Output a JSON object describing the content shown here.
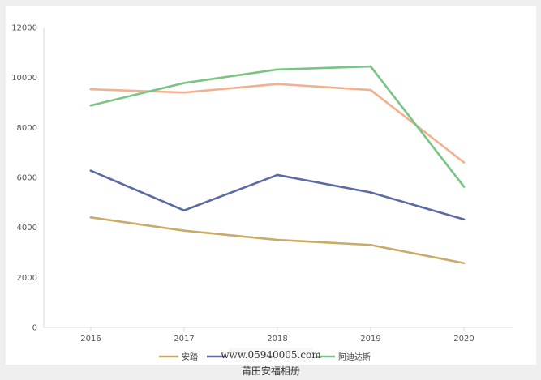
{
  "chart_data": {
    "type": "line",
    "title": "",
    "xlabel": "",
    "ylabel": "",
    "categories": [
      "2016",
      "2017",
      "2018",
      "2019",
      "2020"
    ],
    "ylim": [
      0,
      12000
    ],
    "yticks": [
      0,
      2000,
      4000,
      6000,
      8000,
      10000,
      12000
    ],
    "grid": false,
    "legend_position": "bottom",
    "series": [
      {
        "name": "安踏",
        "color": "#c9ab67",
        "values": [
          4400,
          3870,
          3500,
          3300,
          2570
        ]
      },
      {
        "name": "",
        "color": "#5b6aa3",
        "values": [
          6270,
          4680,
          6100,
          5400,
          4320
        ]
      },
      {
        "name": "",
        "color": "#f2b08e",
        "values": [
          9530,
          9400,
          9740,
          9500,
          6600
        ]
      },
      {
        "name": "阿迪达斯",
        "color": "#79c585",
        "values": [
          8880,
          9780,
          10320,
          10440,
          5630
        ]
      }
    ]
  },
  "watermark": {
    "url_text": "www.05940005.com",
    "caption": "莆田安福相册"
  }
}
